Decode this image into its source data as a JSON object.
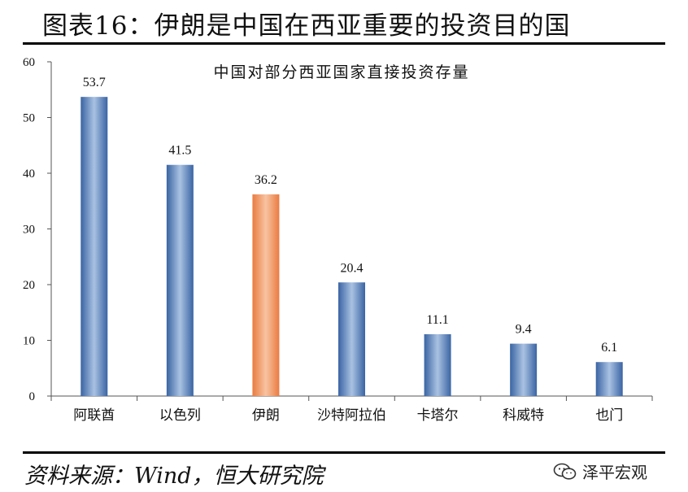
{
  "figure_title": "图表16：伊朗是中国在西亚重要的投资目的国",
  "source_text": "资料来源：Wind，恒大研究院",
  "watermark": {
    "text": "泽平宏观",
    "icon": "wechat-icon"
  },
  "colors": {
    "bar_default": "#3f6fae",
    "bar_highlight": "#f08a55"
  },
  "chart_data": {
    "type": "bar",
    "title": "中国对部分西亚国家直接投资存量",
    "xlabel": "",
    "ylabel": "",
    "categories": [
      "阿联酋",
      "以色列",
      "伊朗",
      "沙特阿拉伯",
      "卡塔尔",
      "科威特",
      "也门"
    ],
    "values": [
      53.7,
      41.5,
      36.2,
      20.4,
      11.1,
      9.4,
      6.1
    ],
    "data_labels": [
      "53.7",
      "41.5",
      "36.2",
      "20.4",
      "11.1",
      "9.4",
      "6.1"
    ],
    "highlight_category": "伊朗",
    "ylim": [
      0,
      60
    ],
    "yticks": [
      0,
      10,
      20,
      30,
      40,
      50,
      60
    ],
    "ytick_labels": [
      "0",
      "10",
      "20",
      "30",
      "40",
      "50",
      "60"
    ],
    "grid": false,
    "legend": "none"
  }
}
